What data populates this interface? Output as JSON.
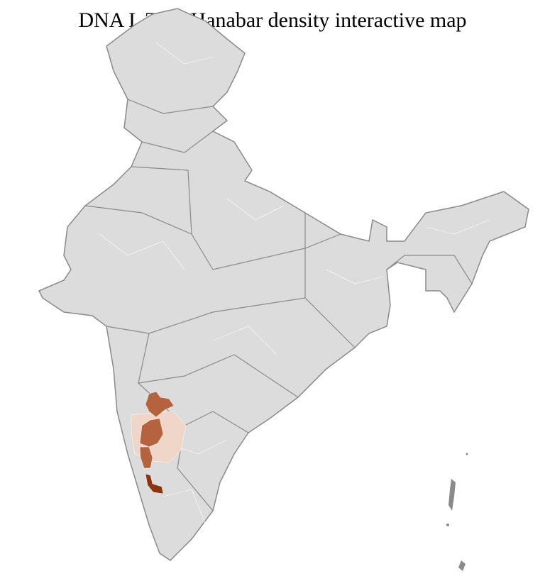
{
  "title": "DNA L Tulu Hanabar density interactive map",
  "colors": {
    "background": "#ffffff",
    "land": "#dcdcdc",
    "state_border": "#8a8a8a",
    "district_border": "#ffffff",
    "density_low": "#f0d6c8",
    "density_medium": "#b5633f",
    "density_high": "#8a3510"
  },
  "highlighted_regions": [
    {
      "density": "medium"
    },
    {
      "density": "medium"
    },
    {
      "density": "medium"
    },
    {
      "density": "high"
    },
    {
      "density": "low"
    }
  ]
}
